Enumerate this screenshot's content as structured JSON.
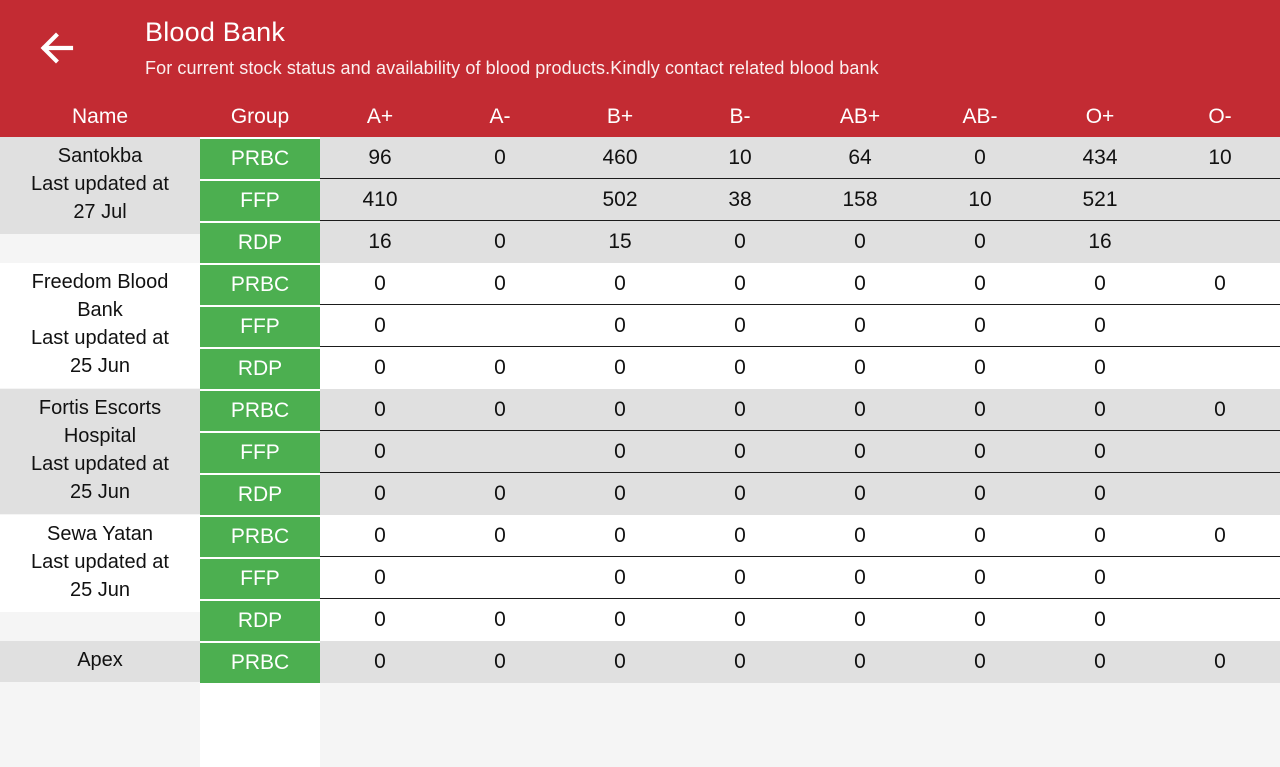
{
  "header": {
    "title": "Blood Bank",
    "subtitle": "For current stock status and availability of blood products.Kindly contact related blood bank",
    "back_icon": "arrow-left"
  },
  "colors": {
    "app_bar_red": "#c32b33",
    "group_green": "#4caf50",
    "row_gray": "#e0e0e0",
    "row_white": "#ffffff"
  },
  "table": {
    "columns": [
      "Name",
      "Group",
      "A+",
      "A-",
      "B+",
      "B-",
      "AB+",
      "AB-",
      "O+",
      "O-"
    ],
    "banks": [
      {
        "name": "Santokba",
        "updated_label": "Last updated at",
        "updated_date": "27 Jul",
        "row_shade": "gray",
        "rows": [
          {
            "group": "PRBC",
            "values": [
              "96",
              "0",
              "460",
              "10",
              "64",
              "0",
              "434",
              "10"
            ]
          },
          {
            "group": "FFP",
            "values": [
              "410",
              "",
              "502",
              "38",
              "158",
              "10",
              "521",
              ""
            ]
          },
          {
            "group": "RDP",
            "values": [
              "16",
              "0",
              "15",
              "0",
              "0",
              "0",
              "16",
              ""
            ]
          }
        ]
      },
      {
        "name": "Freedom Blood Bank",
        "updated_label": "Last updated at",
        "updated_date": "25 Jun",
        "row_shade": "white",
        "rows": [
          {
            "group": "PRBC",
            "values": [
              "0",
              "0",
              "0",
              "0",
              "0",
              "0",
              "0",
              "0"
            ]
          },
          {
            "group": "FFP",
            "values": [
              "0",
              "",
              "0",
              "0",
              "0",
              "0",
              "0",
              ""
            ]
          },
          {
            "group": "RDP",
            "values": [
              "0",
              "0",
              "0",
              "0",
              "0",
              "0",
              "0",
              ""
            ]
          }
        ]
      },
      {
        "name": "Fortis Escorts Hospital",
        "updated_label": "Last updated at",
        "updated_date": "25 Jun",
        "row_shade": "gray",
        "rows": [
          {
            "group": "PRBC",
            "values": [
              "0",
              "0",
              "0",
              "0",
              "0",
              "0",
              "0",
              "0"
            ]
          },
          {
            "group": "FFP",
            "values": [
              "0",
              "",
              "0",
              "0",
              "0",
              "0",
              "0",
              ""
            ]
          },
          {
            "group": "RDP",
            "values": [
              "0",
              "0",
              "0",
              "0",
              "0",
              "0",
              "0",
              ""
            ]
          }
        ]
      },
      {
        "name": "Sewa Yatan",
        "updated_label": "Last updated at",
        "updated_date": "25 Jun",
        "row_shade": "white",
        "rows": [
          {
            "group": "PRBC",
            "values": [
              "0",
              "0",
              "0",
              "0",
              "0",
              "0",
              "0",
              "0"
            ]
          },
          {
            "group": "FFP",
            "values": [
              "0",
              "",
              "0",
              "0",
              "0",
              "0",
              "0",
              ""
            ]
          },
          {
            "group": "RDP",
            "values": [
              "0",
              "0",
              "0",
              "0",
              "0",
              "0",
              "0",
              ""
            ]
          }
        ]
      },
      {
        "name": "Apex",
        "updated_label": "",
        "updated_date": "",
        "row_shade": "gray",
        "rows": [
          {
            "group": "PRBC",
            "values": [
              "0",
              "0",
              "0",
              "0",
              "0",
              "0",
              "0",
              "0"
            ]
          }
        ]
      }
    ]
  }
}
